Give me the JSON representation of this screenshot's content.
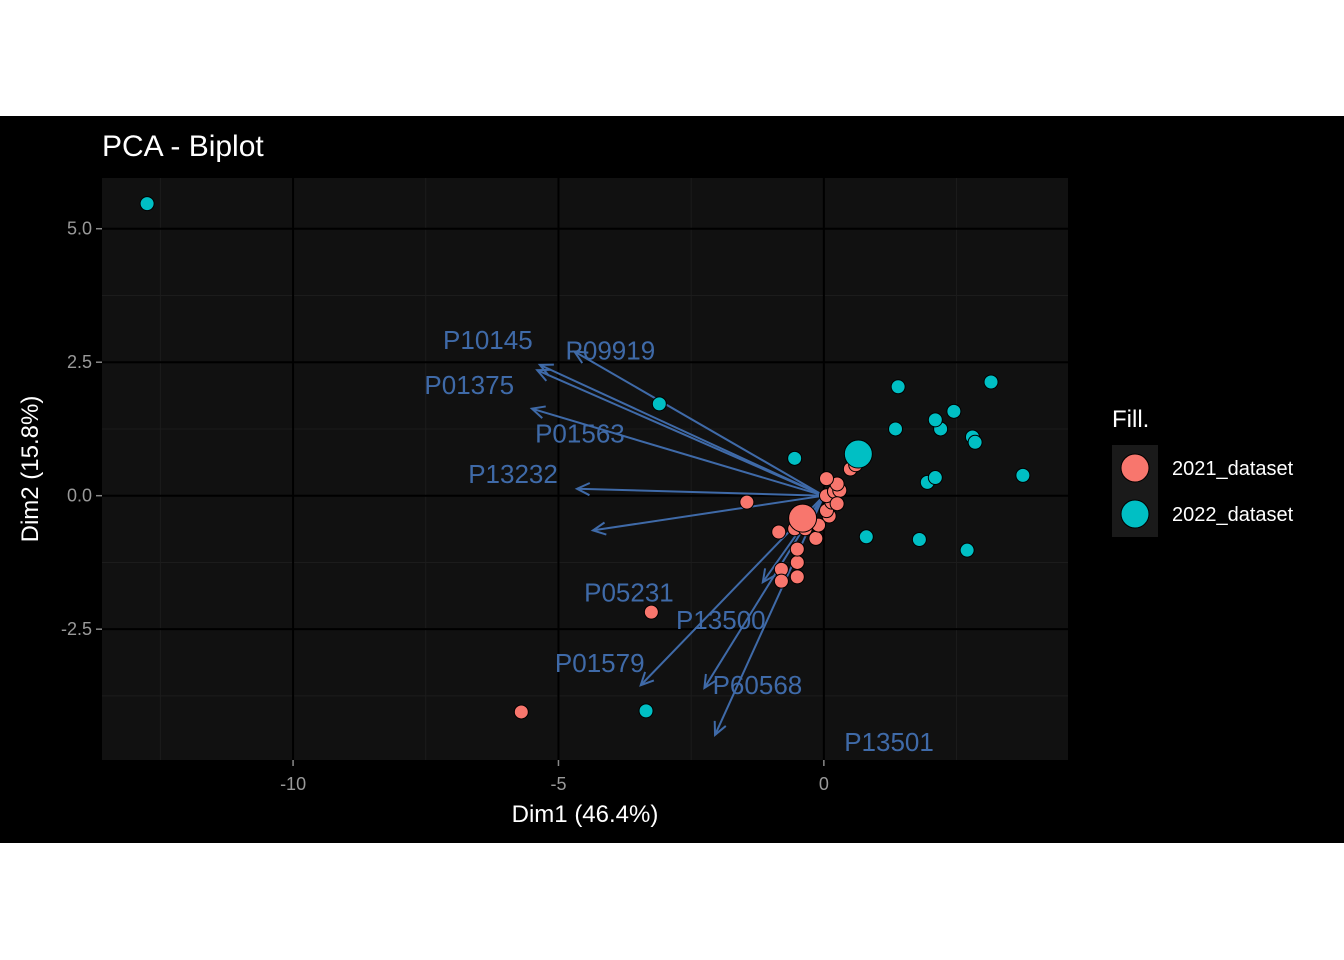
{
  "chart_data": {
    "type": "scatter",
    "subtype": "pca-biplot",
    "title": "PCA - Biplot",
    "xlabel": "Dim1 (46.4%)",
    "ylabel": "Dim2 (15.8%)",
    "xlim": [
      -13.6,
      4.6
    ],
    "ylim": [
      -4.95,
      5.95
    ],
    "x_ticks": [
      -10,
      -5,
      0
    ],
    "x_tick_labels": [
      "-10",
      "-5",
      "0"
    ],
    "y_ticks": [
      -2.5,
      0,
      2.5,
      5
    ],
    "y_tick_labels": [
      "-2.5",
      "0.0",
      "2.5",
      "5.0"
    ],
    "grid": true,
    "theme": "dark",
    "legend": {
      "title": "Fill.",
      "position": "right",
      "entries": [
        "2021_dataset",
        "2022_dataset"
      ]
    },
    "colors": {
      "2021_dataset": "#f8766d",
      "2022_dataset": "#00bfc4",
      "arrows": "#3f6aa8",
      "panel": "#111111",
      "background": "#000000",
      "grid_major": "#000000",
      "grid_minor": "#1c1c1c"
    },
    "series": [
      {
        "name": "2021_dataset",
        "points": [
          [
            -5.7,
            -4.05
          ],
          [
            -3.25,
            -2.18
          ],
          [
            -1.45,
            -0.12
          ],
          [
            -0.85,
            -0.68
          ],
          [
            -0.8,
            -1.38
          ],
          [
            -0.8,
            -1.6
          ],
          [
            -0.5,
            -1.52
          ],
          [
            -0.5,
            -1.25
          ],
          [
            -0.5,
            -1.0
          ],
          [
            -0.55,
            -0.62
          ],
          [
            -0.35,
            -0.62
          ],
          [
            -0.3,
            -0.38
          ],
          [
            -0.15,
            -0.8
          ],
          [
            -0.1,
            -0.55
          ],
          [
            0.1,
            -0.38
          ],
          [
            0.05,
            -0.28
          ],
          [
            0.15,
            -0.12
          ],
          [
            0.05,
            0.0
          ],
          [
            0.2,
            0.08
          ],
          [
            0.3,
            0.1
          ],
          [
            0.25,
            0.22
          ],
          [
            0.05,
            0.32
          ],
          [
            0.5,
            0.5
          ],
          [
            0.6,
            0.58
          ],
          [
            0.25,
            -0.15
          ]
        ],
        "centroid": [
          -0.4,
          -0.42
        ]
      },
      {
        "name": "2022_dataset",
        "points": [
          [
            -12.75,
            5.47
          ],
          [
            -3.1,
            1.72
          ],
          [
            -0.55,
            0.7
          ],
          [
            -3.35,
            -4.03
          ],
          [
            0.8,
            -0.77
          ],
          [
            1.8,
            -0.82
          ],
          [
            2.7,
            -1.02
          ],
          [
            1.95,
            0.25
          ],
          [
            2.1,
            0.34
          ],
          [
            1.35,
            1.25
          ],
          [
            2.2,
            1.25
          ],
          [
            2.1,
            1.42
          ],
          [
            2.45,
            1.58
          ],
          [
            1.4,
            2.04
          ],
          [
            2.8,
            1.1
          ],
          [
            2.85,
            1.0
          ],
          [
            3.15,
            2.13
          ],
          [
            3.75,
            0.38
          ]
        ],
        "centroid": [
          0.65,
          0.78
        ]
      }
    ],
    "variables": [
      {
        "name": "P09919",
        "x": -4.7,
        "y": 2.7
      },
      {
        "name": "P10145",
        "x": -5.35,
        "y": 2.45
      },
      {
        "name": "P01375",
        "x": -5.4,
        "y": 2.35
      },
      {
        "name": "P01563",
        "x": -5.5,
        "y": 1.63
      },
      {
        "name": "P13232",
        "x": -4.65,
        "y": 0.13
      },
      {
        "name": "P05231",
        "x": -4.35,
        "y": -0.65
      },
      {
        "name": "P13500",
        "x": -1.15,
        "y": -1.62
      },
      {
        "name": "P01579",
        "x": -3.45,
        "y": -3.55
      },
      {
        "name": "P60568",
        "x": -2.25,
        "y": -3.6
      },
      {
        "name": "P13501",
        "x": -2.05,
        "y": -4.48
      }
    ]
  }
}
